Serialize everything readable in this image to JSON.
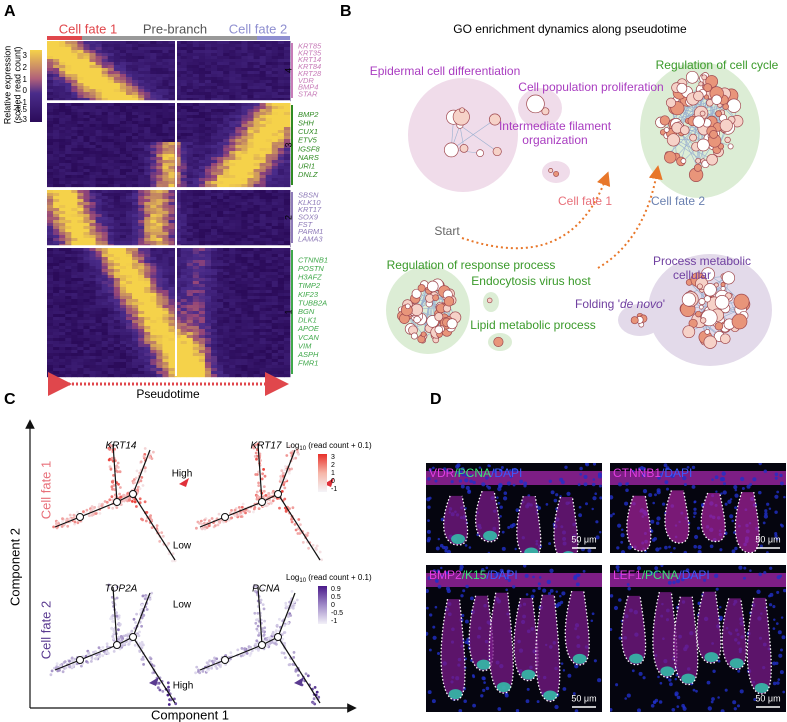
{
  "panel_a": {
    "label": "A",
    "header": [
      "Cell fate 1",
      "Pre-branch",
      "Cell fate 2"
    ],
    "colorbar_label": [
      "Relative expression",
      "(scaled read count)"
    ],
    "colorbar_ticks": [
      "3",
      "2",
      "1",
      "0",
      "-1",
      "-1.5",
      "-3"
    ],
    "clusters": [
      {
        "number": "4",
        "genes": [
          "KRT85",
          "KRT35",
          "KRT14",
          "KRT84",
          "KRT28",
          "VDR",
          "BMP4",
          "STAR"
        ]
      },
      {
        "number": "3",
        "genes": [
          "BMP2",
          "SHH",
          "CUX1",
          "ETV5",
          "IGSF8",
          "NARS",
          "URI1",
          "DNLZ"
        ]
      },
      {
        "number": "2",
        "genes": [
          "SBSN",
          "KLK10",
          "KRT17",
          "SOX9",
          "FST",
          "PARM1",
          "LAMA3"
        ]
      },
      {
        "number": "1",
        "genes": [
          "CTNNB1",
          "POSTN",
          "H3AFZ",
          "TIMP2",
          "KIF23",
          "TUBB2A",
          "BGN",
          "DLK1",
          "APOE",
          "VCAN",
          "VIM",
          "ASPH",
          "FMR1"
        ]
      }
    ],
    "x_label": "Pseudotime"
  },
  "panel_b": {
    "label": "B",
    "title": "GO enrichment dynamics along pseudotime",
    "terms": {
      "epidermal": "Epidermal cell differentiation",
      "proliferation": "Cell population proliferation",
      "filament": [
        "Intermediate filament",
        "organization"
      ],
      "cell_cycle": "Regulation of cell cycle",
      "response": "Regulation of response process",
      "endocytosis": "Endocytosis virus host",
      "lipid": "Lipid metabolic process",
      "metabolic": [
        "Process metabolic",
        "cellular"
      ],
      "folding": [
        "Folding '",
        "de novo",
        "'"
      ]
    },
    "fates": [
      "Cell fate 1",
      "Cell fate 2"
    ],
    "start": "Start"
  },
  "panel_c": {
    "label": "C",
    "y_label": "Component 2",
    "x_label": "Component 1",
    "rows": [
      "Cell fate 1",
      "Cell fate 2"
    ],
    "genes": [
      "KRT14",
      "KRT17",
      "TOP2A",
      "PCNA"
    ],
    "annotations": [
      "High",
      "Low",
      "Low",
      "High"
    ],
    "scales": [
      {
        "title": [
          "Log",
          "10",
          " (read count + 0.1)"
        ],
        "ticks": [
          "3",
          "2",
          "1",
          "0",
          "-1"
        ]
      },
      {
        "title": [
          "Log",
          "10",
          " (read count + 0.1)"
        ],
        "ticks": [
          "0.9",
          "0.5",
          "0",
          "-0.5",
          "-1"
        ]
      }
    ]
  },
  "panel_d": {
    "label": "D",
    "images": [
      {
        "stain": [
          {
            "text": "VDR",
            "color": "#e23de2"
          },
          {
            "text": "/PCNA",
            "color": "#3fe07a"
          },
          {
            "text": "/DAPI",
            "color": "#3b5bff"
          }
        ],
        "scale_bar": "50 μm"
      },
      {
        "stain": [
          {
            "text": "CTNNB1",
            "color": "#e23de2"
          },
          {
            "text": "/DAPI",
            "color": "#3b5bff"
          }
        ],
        "scale_bar": "50 μm"
      },
      {
        "stain": [
          {
            "text": "BMP2",
            "color": "#e23de2"
          },
          {
            "text": "/K15",
            "color": "#3fe07a"
          },
          {
            "text": "/DAPI",
            "color": "#3b5bff"
          }
        ],
        "scale_bar": "50 μm"
      },
      {
        "stain": [
          {
            "text": "LEF1",
            "color": "#e23de2"
          },
          {
            "text": "/PCNA",
            "color": "#3fe07a"
          },
          {
            "text": "/DAPI",
            "color": "#3b5bff"
          }
        ],
        "scale_bar": "50 μm"
      }
    ]
  }
}
